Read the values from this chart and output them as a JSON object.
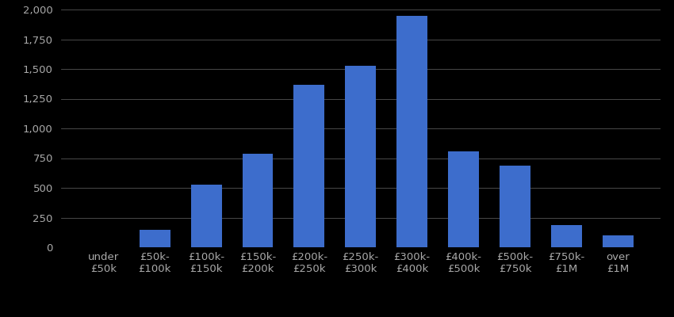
{
  "categories": [
    "under\n£50k",
    "£50k-\n£100k",
    "£100k-\n£150k",
    "£150k-\n£200k",
    "£200k-\n£250k",
    "£250k-\n£300k",
    "£300k-\n£400k",
    "£400k-\n£500k",
    "£500k-\n£750k",
    "£750k-\n£1M",
    "over\n£1M"
  ],
  "values": [
    0,
    150,
    530,
    790,
    1370,
    1530,
    1950,
    810,
    690,
    185,
    100
  ],
  "bar_color": "#3d6dcc",
  "background_color": "#000000",
  "text_color": "#aaaaaa",
  "grid_color": "#555555",
  "ylim": [
    0,
    2000
  ],
  "yticks": [
    0,
    250,
    500,
    750,
    1000,
    1250,
    1500,
    1750,
    2000
  ],
  "tick_fontsize": 9.5,
  "figsize": [
    8.5,
    4.0
  ],
  "dpi": 100
}
